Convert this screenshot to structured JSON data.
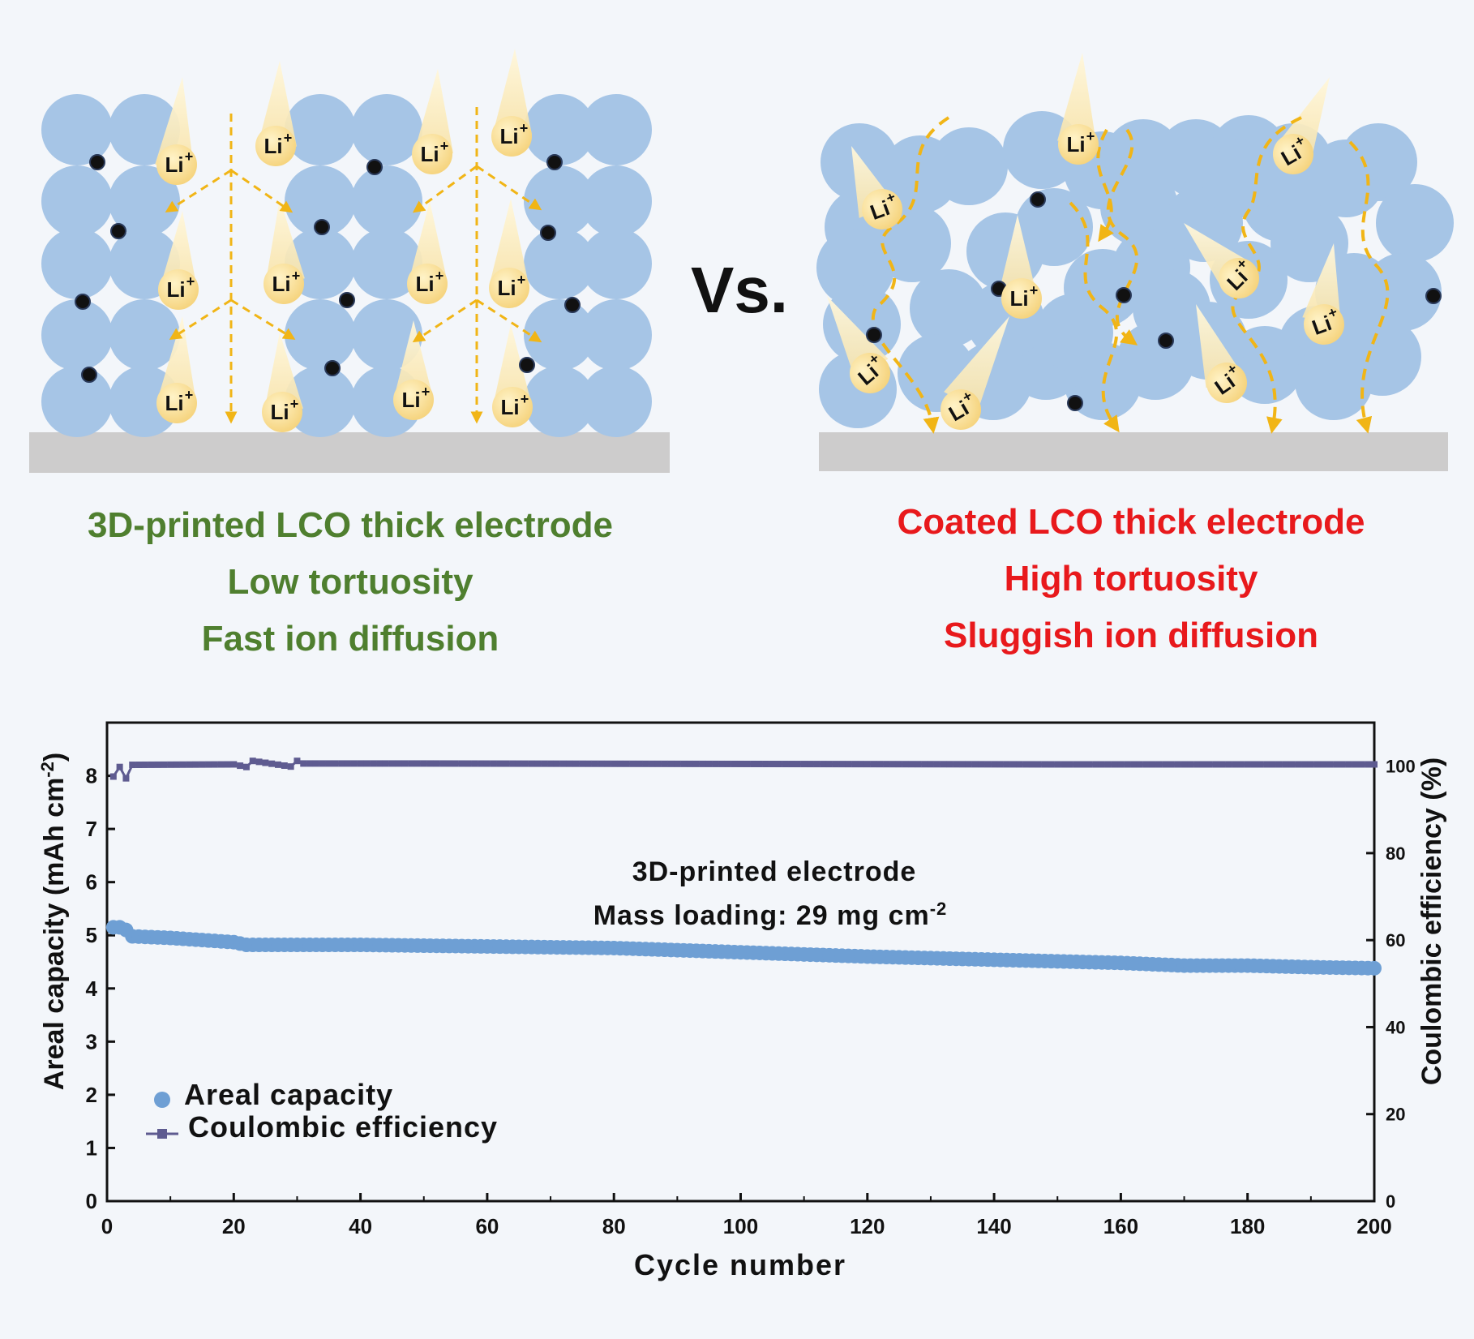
{
  "colors": {
    "background": "#f3f6fa",
    "particle": "#a6c5e6",
    "carbon": "#111111",
    "ion": "#f7d98a",
    "ion_path": "#f1b516",
    "collector": "#cdcccc",
    "green_text": "#4f7f2f",
    "red_text": "#e8191c",
    "capacity_series": "#6e9fd4",
    "efficiency_series": "#5e5b90"
  },
  "ion_label": "Li",
  "ion_charge": "+",
  "versus": "Vs.",
  "left_panel": {
    "lines": [
      "3D-printed LCO thick electrode",
      "Low tortuosity",
      "Fast ion diffusion"
    ]
  },
  "right_panel": {
    "lines": [
      "Coated LCO thick electrode",
      "High tortuosity",
      "Sluggish ion diffusion"
    ]
  },
  "chart_data": {
    "type": "scatter",
    "xlabel": "Cycle number",
    "ylabel_left": "Areal capacity (mAh cm",
    "ylabel_left_sup": "-2",
    "ylabel_left_close": ")",
    "ylabel_right": "Coulombic efficiency (%)",
    "xlim": [
      0,
      200
    ],
    "ylim_left": [
      0,
      9
    ],
    "ylim_right": [
      0,
      110
    ],
    "x_ticks": [
      0,
      20,
      40,
      60,
      80,
      100,
      120,
      140,
      160,
      180,
      200
    ],
    "y_left_ticks": [
      0,
      1,
      2,
      3,
      4,
      5,
      6,
      7,
      8
    ],
    "y_right_ticks": [
      0,
      20,
      40,
      60,
      80,
      100
    ],
    "annotation_line1": "3D-printed electrode",
    "annotation_line2": "Mass loading: 29 mg cm",
    "annotation_line2_sup": "-2",
    "legend_position": "bottom-left",
    "series": [
      {
        "name": "Areal capacity",
        "axis": "left",
        "marker": "circle",
        "points": [
          [
            1,
            5.15
          ],
          [
            2,
            5.15
          ],
          [
            3,
            5.1
          ],
          [
            4,
            4.98
          ],
          [
            10,
            4.95
          ],
          [
            20,
            4.87
          ],
          [
            22,
            4.82
          ],
          [
            30,
            4.82
          ],
          [
            40,
            4.82
          ],
          [
            60,
            4.79
          ],
          [
            80,
            4.76
          ],
          [
            100,
            4.68
          ],
          [
            120,
            4.6
          ],
          [
            140,
            4.54
          ],
          [
            160,
            4.48
          ],
          [
            170,
            4.43
          ],
          [
            180,
            4.43
          ],
          [
            190,
            4.4
          ],
          [
            200,
            4.38
          ]
        ]
      },
      {
        "name": "Coulombic efficiency",
        "axis": "right",
        "marker": "square-line",
        "points": [
          [
            1,
            97.6
          ],
          [
            2,
            99.8
          ],
          [
            3,
            97.2
          ],
          [
            4,
            100.3
          ],
          [
            20,
            100.4
          ],
          [
            22,
            99.8
          ],
          [
            23,
            101.2
          ],
          [
            29,
            99.9
          ],
          [
            30,
            101.2
          ],
          [
            31,
            100.6
          ],
          [
            50,
            100.6
          ],
          [
            100,
            100.5
          ],
          [
            150,
            100.4
          ],
          [
            200,
            100.4
          ]
        ]
      }
    ]
  }
}
